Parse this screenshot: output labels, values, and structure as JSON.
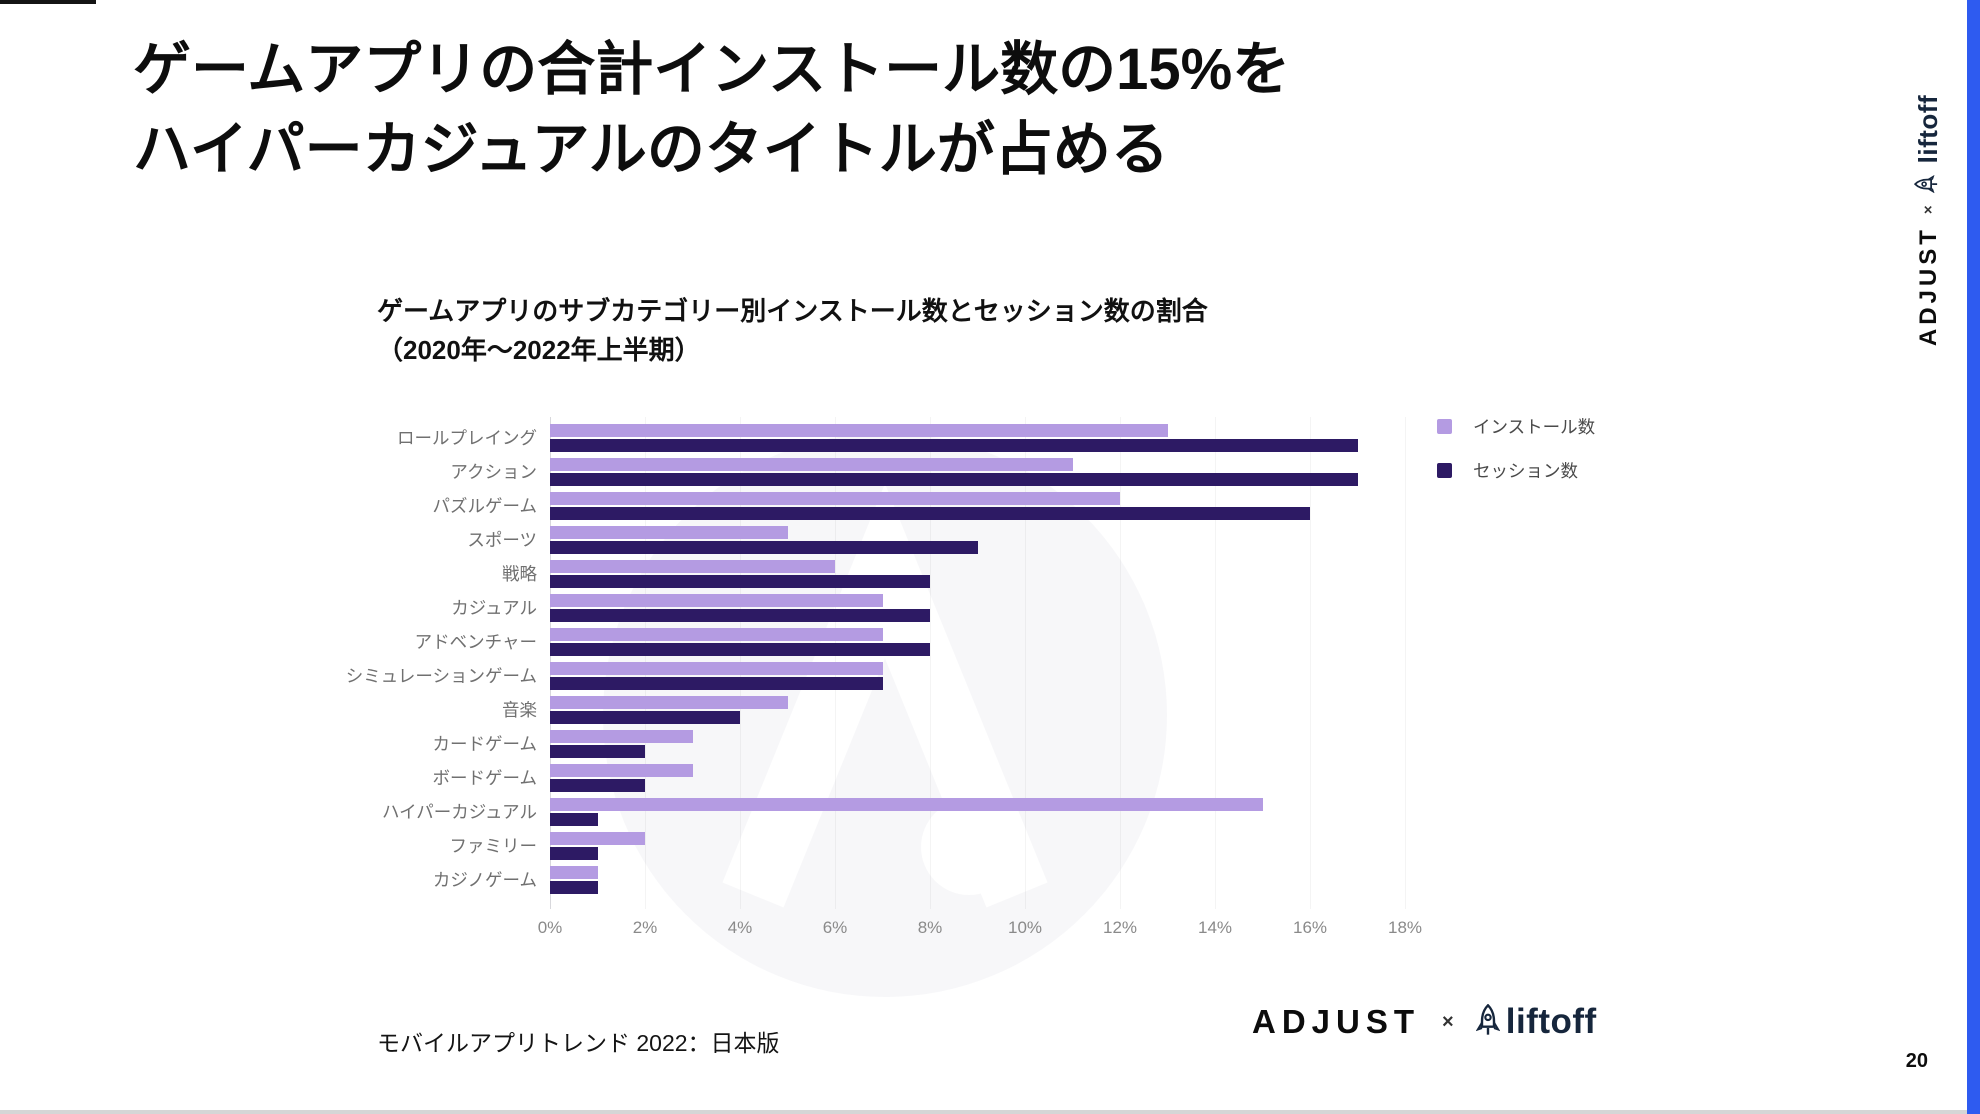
{
  "page": {
    "title_line1": "ゲームアプリの合計インストール数の15%を",
    "title_line2": "ハイパーカジュアルのタイトルが占める",
    "footer_source": "モバイルアプリトレンド 2022：日本版",
    "page_number": "20"
  },
  "brand": {
    "adjust": "ADJUST",
    "cross": "×",
    "liftoff": "liftoff"
  },
  "colors": {
    "install": "#b49be2",
    "session": "#2d1a64",
    "accent_strip": "#2e5bf0",
    "liftoff_text": "#16263c"
  },
  "chart_data": {
    "type": "bar",
    "orientation": "horizontal",
    "title_line1": "ゲームアプリのサブカテゴリー別インストール数とセッション数の割合",
    "title_line2": "（2020年〜2022年上半期）",
    "categories": [
      "ロールプレイング",
      "アクション",
      "パズルゲーム",
      "スポーツ",
      "戦略",
      "カジュアル",
      "アドベンチャー",
      "シミュレーションゲーム",
      "音楽",
      "カードゲーム",
      "ボードゲーム",
      "ハイパーカジュアル",
      "ファミリー",
      "カジノゲーム"
    ],
    "series": [
      {
        "name": "インストール数",
        "color": "#b49be2",
        "values": [
          13,
          11,
          12,
          5,
          6,
          7,
          7,
          7,
          5,
          3,
          3,
          15,
          2,
          1
        ]
      },
      {
        "name": "セッション数",
        "color": "#2d1a64",
        "values": [
          17,
          17,
          16,
          9,
          8,
          8,
          8,
          7,
          4,
          2,
          2,
          1,
          1,
          1
        ]
      }
    ],
    "x_ticks": [
      "0%",
      "2%",
      "4%",
      "6%",
      "8%",
      "10%",
      "12%",
      "14%",
      "16%",
      "18%"
    ],
    "xlim": [
      0,
      18
    ],
    "unit": "%",
    "legend_position": "top-right",
    "grid": "faint-vertical"
  }
}
